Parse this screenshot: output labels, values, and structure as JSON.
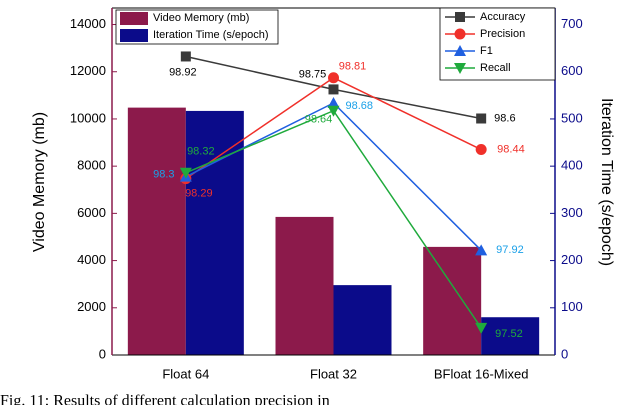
{
  "chart_data": {
    "type": "bar",
    "categories": [
      "Float 64",
      "Float 32",
      "BFloat 16-Mixed"
    ],
    "ylabel": "Video Memory (mb)",
    "y2label": "Iteration Time (s/epoch)",
    "ylim": [
      0,
      14700
    ],
    "yticks": [
      0,
      2000,
      4000,
      6000,
      8000,
      10000,
      12000,
      14000
    ],
    "y2lim": [
      0,
      735
    ],
    "y2ticks": [
      0,
      100,
      200,
      300,
      400,
      500,
      600,
      700
    ],
    "y3lim": [
      97.38,
      99.17
    ],
    "series": [
      {
        "name": "Video Memory (mb)",
        "type": "bar",
        "color": "#8c1a4b",
        "values": [
          10480,
          5850,
          4580
        ]
      },
      {
        "name": "Iteration Time (s/epoch)",
        "type": "bar",
        "axis": "y2",
        "color": "#0b0b8a",
        "values": [
          517,
          148,
          80
        ]
      },
      {
        "name": "Accuracy",
        "type": "line",
        "axis": "y3",
        "color": "#3a3a3a",
        "label_color": "#000000",
        "marker": "square",
        "values": [
          98.92,
          98.75,
          98.6
        ]
      },
      {
        "name": "Precision",
        "type": "line",
        "axis": "y3",
        "color": "#f0302a",
        "label_color": "#f0302a",
        "marker": "circle",
        "values": [
          98.29,
          98.81,
          98.44
        ]
      },
      {
        "name": "F1",
        "type": "line",
        "axis": "y3",
        "color": "#1f5fe0",
        "label_color": "#1aa0e8",
        "marker": "triangle-up",
        "values": [
          98.3,
          98.68,
          97.92
        ]
      },
      {
        "name": "Recall",
        "type": "line",
        "axis": "y3",
        "color": "#1faa3c",
        "label_color": "#1faa3c",
        "marker": "triangle-down",
        "values": [
          98.32,
          98.64,
          97.52
        ]
      }
    ],
    "caption": "Fig. 11:  Results of different calculation precision in"
  }
}
